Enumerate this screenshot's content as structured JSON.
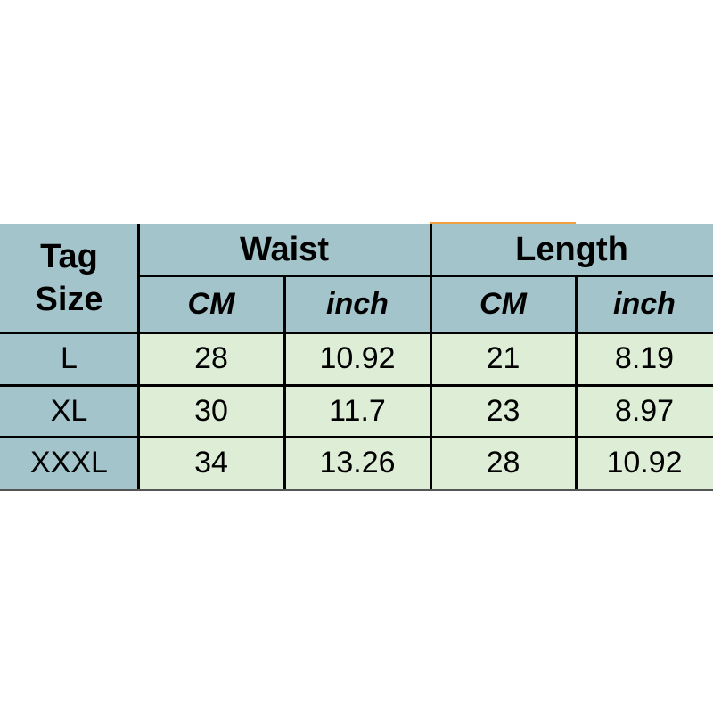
{
  "table": {
    "tag_header": [
      "Tag",
      "Size"
    ],
    "groups": [
      {
        "label": "Waist",
        "units": [
          "CM",
          "inch"
        ]
      },
      {
        "label": "Length",
        "units": [
          "CM",
          "inch"
        ]
      }
    ],
    "rows": [
      {
        "size": "L",
        "values": [
          "28",
          "10.92",
          "21",
          "8.19"
        ]
      },
      {
        "size": "XL",
        "values": [
          "30",
          "11.7",
          "23",
          "8.97"
        ]
      },
      {
        "size": "XXXL",
        "values": [
          "34",
          "13.26",
          "28",
          "10.92"
        ]
      }
    ]
  },
  "colors": {
    "header_bg": "#a3c4ca",
    "cell_bg": "#deedd6",
    "accent": "#f0a040",
    "border": "#000000"
  }
}
